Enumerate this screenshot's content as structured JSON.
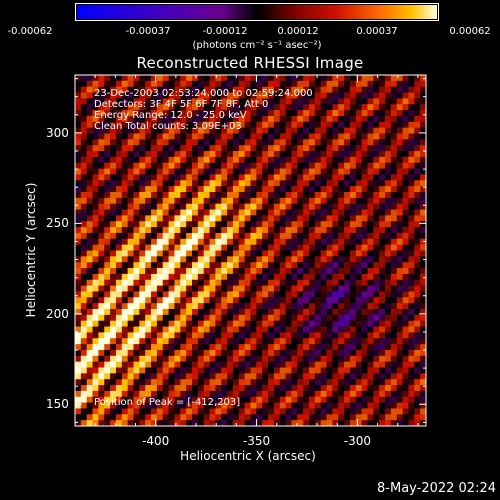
{
  "colorbar": {
    "ticks": [
      "-0.00062",
      "-0.00037",
      "-0.00012",
      "0.00012",
      "0.00037",
      "0.00062"
    ],
    "unit_label": "(photons cm⁻² s⁻¹ asec⁻²)"
  },
  "annotations": {
    "time_range": "23-Dec-2003 02:53:24.000 to 02:59:24.000",
    "detectors": "Detectors: 3F 4F 5F 6F 7F 8F, Att 0",
    "energy_range": "Energy Range: 12.0 - 25.0 keV",
    "method_counts": "Clean     Total counts: 3.09E+03",
    "peak_position": "Position of Peak = [-412,203]"
  },
  "footer": {
    "date": "8-May-2022 02:24"
  },
  "chart_data": {
    "type": "heatmap",
    "title": "Reconstructed RHESSI Image",
    "xlabel": "Heliocentric X (arcsec)",
    "ylabel": "Heliocentric Y (arcsec)",
    "xlim": [
      -440,
      -266
    ],
    "ylim": [
      138,
      332
    ],
    "x_ticks": [
      -400,
      -350,
      -300
    ],
    "y_ticks": [
      150,
      200,
      250,
      300
    ],
    "color_range": [
      -0.00062,
      0.00062
    ],
    "colormap": [
      "#0000ff",
      "#6a0090",
      "#000000",
      "#d01000",
      "#ffc000",
      "#ffffe0"
    ],
    "peak": {
      "x": -412,
      "y": 203
    },
    "grid": false
  }
}
